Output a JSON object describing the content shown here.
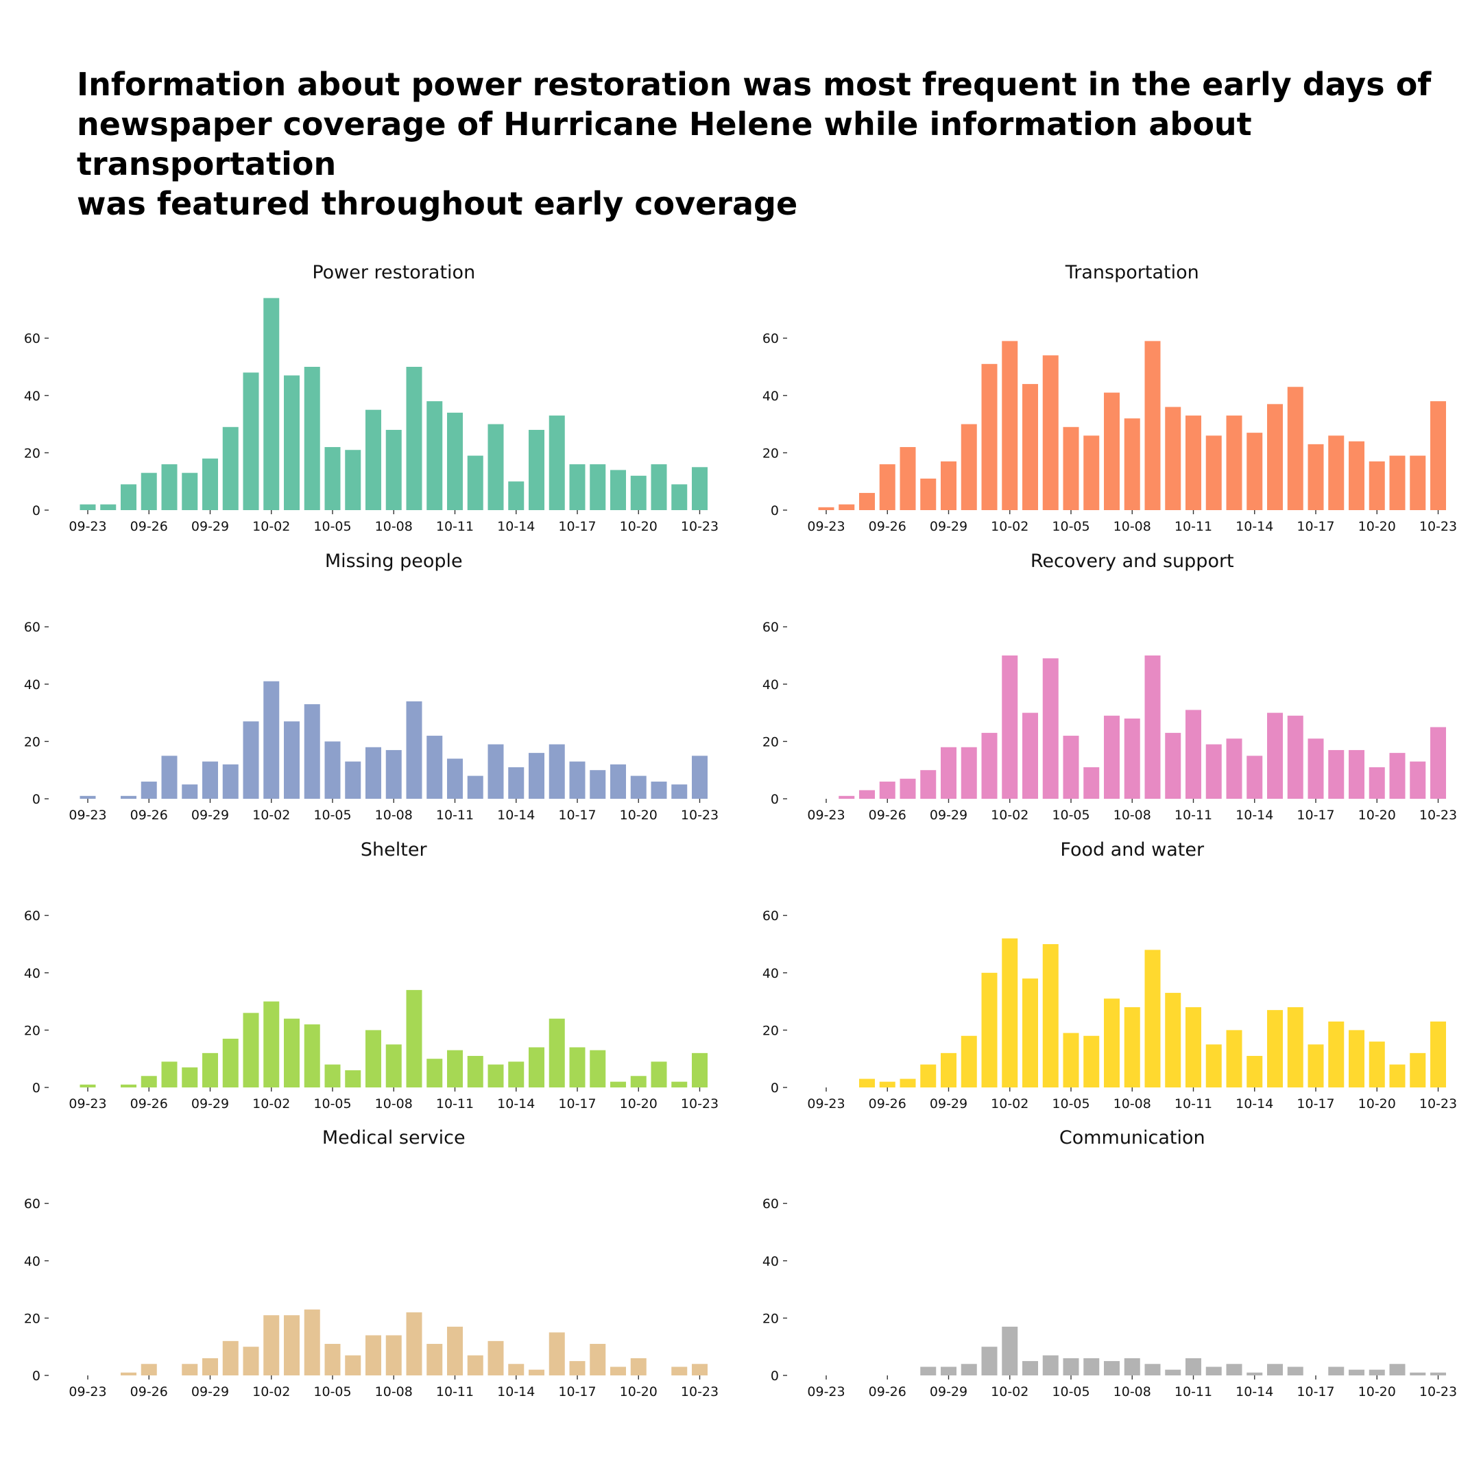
{
  "title": "Information about power restoration was most frequent in the early days of\nnewspaper coverage of Hurricane Helene while information about transportation\nwas featured throughout early coverage",
  "chart_data": [
    {
      "type": "bar",
      "title": "Power restoration",
      "color": "#66c2a5",
      "categories": [
        "09-23",
        "09-24",
        "09-25",
        "09-26",
        "09-27",
        "09-28",
        "09-29",
        "09-30",
        "10-01",
        "10-02",
        "10-03",
        "10-04",
        "10-05",
        "10-06",
        "10-07",
        "10-08",
        "10-09",
        "10-10",
        "10-11",
        "10-12",
        "10-13",
        "10-14",
        "10-15",
        "10-16",
        "10-17",
        "10-18",
        "10-19",
        "10-20",
        "10-21",
        "10-22",
        "10-23"
      ],
      "values": [
        2,
        2,
        9,
        13,
        16,
        13,
        18,
        29,
        48,
        74,
        47,
        50,
        22,
        21,
        35,
        28,
        50,
        38,
        34,
        19,
        30,
        10,
        28,
        33,
        16,
        16,
        14,
        12,
        16,
        9,
        15
      ],
      "x_tick_labels": [
        "09-23",
        "09-26",
        "09-29",
        "10-02",
        "10-05",
        "10-08",
        "10-11",
        "10-14",
        "10-17",
        "10-20",
        "10-23"
      ],
      "y_ticks": [
        0,
        20,
        40,
        60
      ],
      "ylim": [
        0,
        75
      ]
    },
    {
      "type": "bar",
      "title": "Transportation",
      "color": "#fc8d62",
      "categories": [
        "09-23",
        "09-24",
        "09-25",
        "09-26",
        "09-27",
        "09-28",
        "09-29",
        "09-30",
        "10-01",
        "10-02",
        "10-03",
        "10-04",
        "10-05",
        "10-06",
        "10-07",
        "10-08",
        "10-09",
        "10-10",
        "10-11",
        "10-12",
        "10-13",
        "10-14",
        "10-15",
        "10-16",
        "10-17",
        "10-18",
        "10-19",
        "10-20",
        "10-21",
        "10-22",
        "10-23"
      ],
      "values": [
        1,
        2,
        6,
        16,
        22,
        11,
        17,
        30,
        51,
        59,
        44,
        54,
        29,
        26,
        41,
        32,
        59,
        36,
        33,
        26,
        33,
        27,
        37,
        43,
        23,
        26,
        24,
        17,
        19,
        19,
        38
      ],
      "x_tick_labels": [
        "09-23",
        "09-26",
        "09-29",
        "10-02",
        "10-05",
        "10-08",
        "10-11",
        "10-14",
        "10-17",
        "10-20",
        "10-23"
      ],
      "y_ticks": [
        0,
        20,
        40,
        60
      ],
      "ylim": [
        0,
        75
      ]
    },
    {
      "type": "bar",
      "title": "Missing people",
      "color": "#8da0cb",
      "categories": [
        "09-23",
        "09-24",
        "09-25",
        "09-26",
        "09-27",
        "09-28",
        "09-29",
        "09-30",
        "10-01",
        "10-02",
        "10-03",
        "10-04",
        "10-05",
        "10-06",
        "10-07",
        "10-08",
        "10-09",
        "10-10",
        "10-11",
        "10-12",
        "10-13",
        "10-14",
        "10-15",
        "10-16",
        "10-17",
        "10-18",
        "10-19",
        "10-20",
        "10-21",
        "10-22",
        "10-23"
      ],
      "values": [
        1,
        0,
        1,
        6,
        15,
        5,
        13,
        12,
        27,
        41,
        27,
        33,
        20,
        13,
        18,
        17,
        34,
        22,
        14,
        8,
        19,
        11,
        16,
        19,
        13,
        10,
        12,
        8,
        6,
        5,
        15
      ],
      "x_tick_labels": [
        "09-23",
        "09-26",
        "09-29",
        "10-02",
        "10-05",
        "10-08",
        "10-11",
        "10-14",
        "10-17",
        "10-20",
        "10-23"
      ],
      "y_ticks": [
        0,
        20,
        40,
        60
      ],
      "ylim": [
        0,
        75
      ]
    },
    {
      "type": "bar",
      "title": "Recovery and support",
      "color": "#e78ac3",
      "categories": [
        "09-23",
        "09-24",
        "09-25",
        "09-26",
        "09-27",
        "09-28",
        "09-29",
        "09-30",
        "10-01",
        "10-02",
        "10-03",
        "10-04",
        "10-05",
        "10-06",
        "10-07",
        "10-08",
        "10-09",
        "10-10",
        "10-11",
        "10-12",
        "10-13",
        "10-14",
        "10-15",
        "10-16",
        "10-17",
        "10-18",
        "10-19",
        "10-20",
        "10-21",
        "10-22",
        "10-23"
      ],
      "values": [
        0,
        1,
        3,
        6,
        7,
        10,
        18,
        18,
        23,
        50,
        30,
        49,
        22,
        11,
        29,
        28,
        50,
        23,
        31,
        19,
        21,
        15,
        30,
        29,
        21,
        17,
        17,
        11,
        16,
        13,
        25
      ],
      "x_tick_labels": [
        "09-23",
        "09-26",
        "09-29",
        "10-02",
        "10-05",
        "10-08",
        "10-11",
        "10-14",
        "10-17",
        "10-20",
        "10-23"
      ],
      "y_ticks": [
        0,
        20,
        40,
        60
      ],
      "ylim": [
        0,
        75
      ]
    },
    {
      "type": "bar",
      "title": "Shelter",
      "color": "#a6d854",
      "categories": [
        "09-23",
        "09-24",
        "09-25",
        "09-26",
        "09-27",
        "09-28",
        "09-29",
        "09-30",
        "10-01",
        "10-02",
        "10-03",
        "10-04",
        "10-05",
        "10-06",
        "10-07",
        "10-08",
        "10-09",
        "10-10",
        "10-11",
        "10-12",
        "10-13",
        "10-14",
        "10-15",
        "10-16",
        "10-17",
        "10-18",
        "10-19",
        "10-20",
        "10-21",
        "10-22",
        "10-23"
      ],
      "values": [
        1,
        0,
        1,
        4,
        9,
        7,
        12,
        17,
        26,
        30,
        24,
        22,
        8,
        6,
        20,
        15,
        34,
        10,
        13,
        11,
        8,
        9,
        14,
        24,
        14,
        13,
        2,
        4,
        9,
        2,
        12
      ],
      "x_tick_labels": [
        "09-23",
        "09-26",
        "09-29",
        "10-02",
        "10-05",
        "10-08",
        "10-11",
        "10-14",
        "10-17",
        "10-20",
        "10-23"
      ],
      "y_ticks": [
        0,
        20,
        40,
        60
      ],
      "ylim": [
        0,
        75
      ]
    },
    {
      "type": "bar",
      "title": "Food and water",
      "color": "#ffd92f",
      "categories": [
        "09-23",
        "09-24",
        "09-25",
        "09-26",
        "09-27",
        "09-28",
        "09-29",
        "09-30",
        "10-01",
        "10-02",
        "10-03",
        "10-04",
        "10-05",
        "10-06",
        "10-07",
        "10-08",
        "10-09",
        "10-10",
        "10-11",
        "10-12",
        "10-13",
        "10-14",
        "10-15",
        "10-16",
        "10-17",
        "10-18",
        "10-19",
        "10-20",
        "10-21",
        "10-22",
        "10-23"
      ],
      "values": [
        0,
        0,
        3,
        2,
        3,
        8,
        12,
        18,
        40,
        52,
        38,
        50,
        19,
        18,
        31,
        28,
        48,
        33,
        28,
        15,
        20,
        11,
        27,
        28,
        15,
        23,
        20,
        16,
        8,
        12,
        23
      ],
      "x_tick_labels": [
        "09-23",
        "09-26",
        "09-29",
        "10-02",
        "10-05",
        "10-08",
        "10-11",
        "10-14",
        "10-17",
        "10-20",
        "10-23"
      ],
      "y_ticks": [
        0,
        20,
        40,
        60
      ],
      "ylim": [
        0,
        75
      ]
    },
    {
      "type": "bar",
      "title": "Medical service",
      "color": "#e5c494",
      "categories": [
        "09-23",
        "09-24",
        "09-25",
        "09-26",
        "09-27",
        "09-28",
        "09-29",
        "09-30",
        "10-01",
        "10-02",
        "10-03",
        "10-04",
        "10-05",
        "10-06",
        "10-07",
        "10-08",
        "10-09",
        "10-10",
        "10-11",
        "10-12",
        "10-13",
        "10-14",
        "10-15",
        "10-16",
        "10-17",
        "10-18",
        "10-19",
        "10-20",
        "10-21",
        "10-22",
        "10-23"
      ],
      "values": [
        0,
        0,
        1,
        4,
        0,
        4,
        6,
        12,
        10,
        21,
        21,
        23,
        11,
        7,
        14,
        14,
        22,
        11,
        17,
        7,
        12,
        4,
        2,
        15,
        5,
        11,
        3,
        6,
        0,
        3,
        4
      ],
      "x_tick_labels": [
        "09-23",
        "09-26",
        "09-29",
        "10-02",
        "10-05",
        "10-08",
        "10-11",
        "10-14",
        "10-17",
        "10-20",
        "10-23"
      ],
      "y_ticks": [
        0,
        20,
        40,
        60
      ],
      "ylim": [
        0,
        75
      ]
    },
    {
      "type": "bar",
      "title": "Communication",
      "color": "#b3b3b3",
      "categories": [
        "09-23",
        "09-24",
        "09-25",
        "09-26",
        "09-27",
        "09-28",
        "09-29",
        "09-30",
        "10-01",
        "10-02",
        "10-03",
        "10-04",
        "10-05",
        "10-06",
        "10-07",
        "10-08",
        "10-09",
        "10-10",
        "10-11",
        "10-12",
        "10-13",
        "10-14",
        "10-15",
        "10-16",
        "10-17",
        "10-18",
        "10-19",
        "10-20",
        "10-21",
        "10-22",
        "10-23"
      ],
      "values": [
        0,
        0,
        0,
        0,
        0,
        3,
        3,
        4,
        10,
        17,
        5,
        7,
        6,
        6,
        5,
        6,
        4,
        2,
        6,
        3,
        4,
        1,
        4,
        3,
        0,
        3,
        2,
        2,
        4,
        1,
        1
      ],
      "x_tick_labels": [
        "09-23",
        "09-26",
        "09-29",
        "10-02",
        "10-05",
        "10-08",
        "10-11",
        "10-14",
        "10-17",
        "10-20",
        "10-23"
      ],
      "y_ticks": [
        0,
        20,
        40,
        60
      ],
      "ylim": [
        0,
        75
      ]
    }
  ]
}
